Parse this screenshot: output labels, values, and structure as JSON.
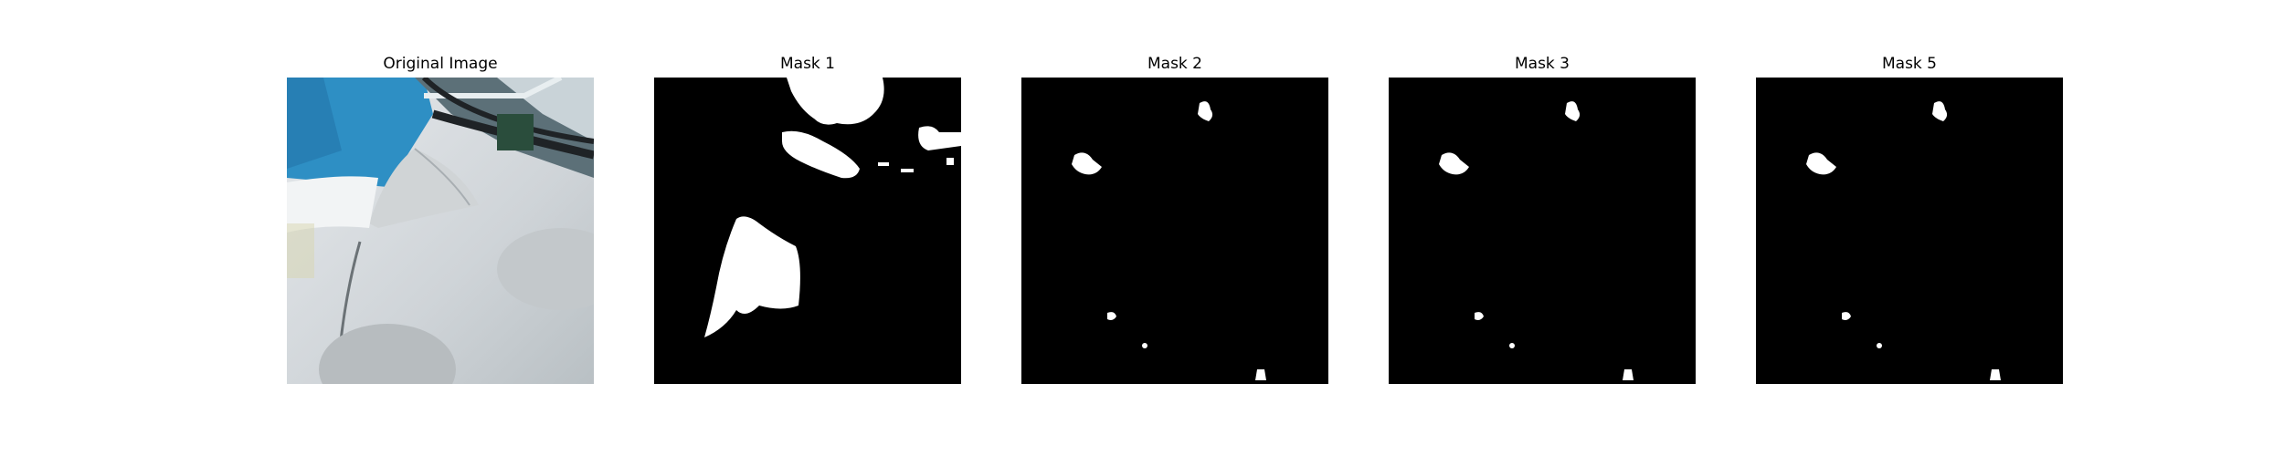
{
  "figure": {
    "panels": [
      {
        "title": "Original Image",
        "kind": "photo",
        "colors": {
          "sky": "#2e8fc4",
          "surface": "#d9dde0",
          "cable": "#1f2326"
        }
      },
      {
        "title": "Mask 1",
        "kind": "mask"
      },
      {
        "title": "Mask 2",
        "kind": "mask"
      },
      {
        "title": "Mask 3",
        "kind": "mask"
      },
      {
        "title": "Mask 5",
        "kind": "mask"
      }
    ],
    "mask_colors": {
      "background": "#000000",
      "foreground": "#ffffff"
    }
  }
}
